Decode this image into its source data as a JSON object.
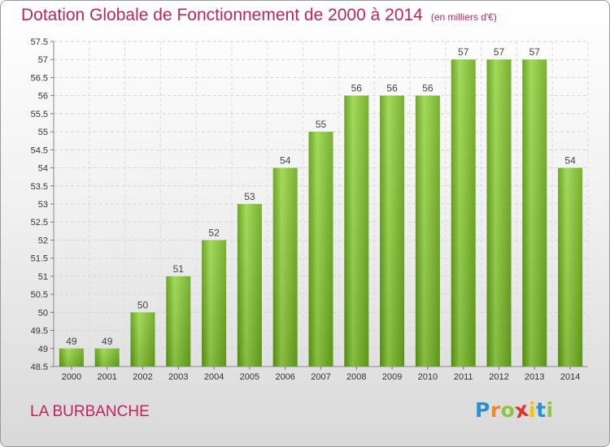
{
  "page": {
    "title": "Dotation Globale de Fonctionnement de 2000 à 2014",
    "subtitle": "(en milliers d'€)",
    "place": "LA BURBANCHE",
    "logo": {
      "letters": [
        "P",
        "r",
        "o",
        "x",
        "i",
        "t",
        "i"
      ],
      "colors": [
        "#2e8fd0",
        "#f08a24",
        "#8cc63f",
        "#e0322c",
        "#f5c400",
        "#2e8fd0",
        "#8cc63f"
      ]
    }
  },
  "chart_data": {
    "type": "bar",
    "title": "Dotation Globale de Fonctionnement de 2000 à 2014",
    "subtitle": "(en milliers d'€)",
    "xlabel": "",
    "ylabel": "",
    "categories": [
      "2000",
      "2001",
      "2002",
      "2003",
      "2004",
      "2005",
      "2006",
      "2007",
      "2008",
      "2009",
      "2010",
      "2011",
      "2012",
      "2013",
      "2014"
    ],
    "values": [
      49,
      49,
      50,
      51,
      52,
      53,
      54,
      55,
      56,
      56,
      56,
      57,
      57,
      57,
      54
    ],
    "data_labels": [
      "49",
      "49",
      "50",
      "51",
      "52",
      "53",
      "54",
      "55",
      "56",
      "56",
      "56",
      "57",
      "57",
      "57",
      "54"
    ],
    "ylim": [
      48.5,
      57.5
    ],
    "yticks": [
      "48.5",
      "49",
      "49.5",
      "50",
      "50.5",
      "51",
      "51.5",
      "52",
      "52.5",
      "53",
      "53.5",
      "54",
      "54.5",
      "55",
      "55.5",
      "56",
      "56.5",
      "57",
      "57.5"
    ],
    "grid": true,
    "bar_color": "#7fbf2a"
  }
}
